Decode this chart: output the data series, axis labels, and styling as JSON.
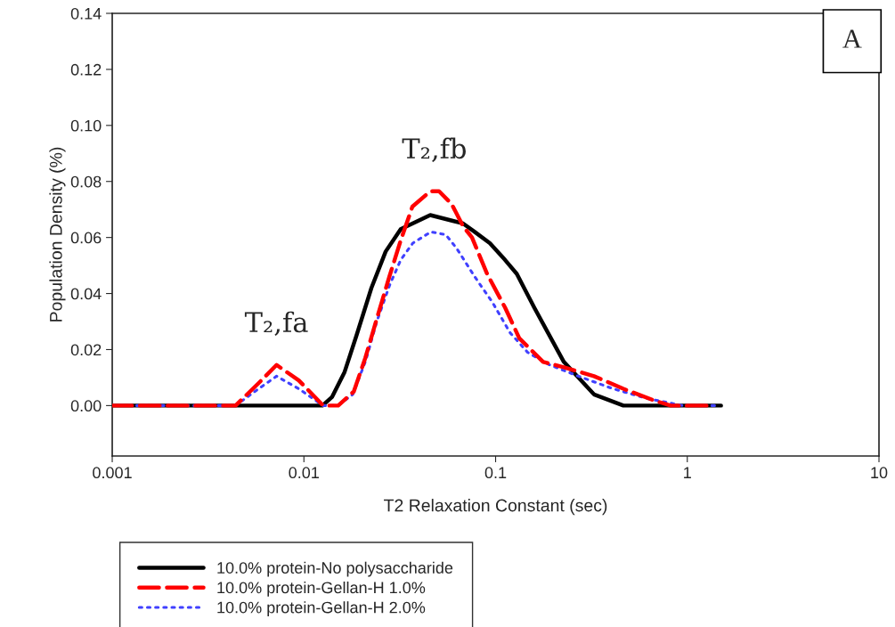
{
  "chart_data": {
    "type": "line",
    "xlabel": "T2 Relaxation Constant (sec)",
    "ylabel": "Population Density (%)",
    "log": "x",
    "xlim": [
      0.001,
      10
    ],
    "xticks": [
      0.001,
      0.01,
      0.1,
      1,
      10
    ],
    "ylim": [
      -0.018,
      0.14
    ],
    "yticks": [
      {
        "value": 0,
        "label": "0.00"
      },
      {
        "value": 0.02,
        "label": "0.02"
      },
      {
        "value": 0.04,
        "label": "0.04"
      },
      {
        "value": 0.06,
        "label": "0.06"
      },
      {
        "value": 0.08,
        "label": "0.08"
      },
      {
        "value": 0.1,
        "label": "0.10"
      },
      {
        "value": 0.12,
        "label": "0.12"
      },
      {
        "value": 0.14,
        "label": "0.14"
      }
    ],
    "grid": false,
    "legend": "bottom",
    "series": [
      {
        "name": "10.0% protein-No polysaccharide",
        "color": "#000000",
        "line_style": "solid",
        "x": [
          0.001,
          0.0125,
          0.014,
          0.0163,
          0.0188,
          0.0225,
          0.0267,
          0.032,
          0.0456,
          0.0677,
          0.0778,
          0.0933,
          0.112,
          0.129,
          0.159,
          0.227,
          0.326,
          0.464,
          1.5
        ],
        "values": [
          0,
          0,
          0.003,
          0.012,
          0.025,
          0.042,
          0.055,
          0.063,
          0.068,
          0.065,
          0.062,
          0.058,
          0.052,
          0.047,
          0.035,
          0.0156,
          0.004,
          0,
          0
        ]
      },
      {
        "name": "10.0% protein-Gellan-H 1.0%",
        "color": "#ff0000",
        "line_style": "dashed",
        "x": [
          0.001,
          0.0044,
          0.0058,
          0.0072,
          0.0094,
          0.0126,
          0.0151,
          0.0182,
          0.0209,
          0.024,
          0.0279,
          0.032,
          0.0368,
          0.0456,
          0.0507,
          0.0589,
          0.0677,
          0.0753,
          0.0903,
          0.112,
          0.133,
          0.177,
          0.227,
          0.326,
          0.464,
          0.661,
          0.818,
          1.3
        ],
        "values": [
          0,
          0,
          0.008,
          0.0145,
          0.009,
          0,
          0,
          0.005,
          0.017,
          0.031,
          0.046,
          0.059,
          0.071,
          0.0765,
          0.0765,
          0.072,
          0.064,
          0.06,
          0.047,
          0.035,
          0.024,
          0.0156,
          0.0137,
          0.0105,
          0.006,
          0.002,
          0,
          0
        ]
      },
      {
        "name": "10.0% protein-Gellan-H 2.0%",
        "color": "#4040ff",
        "line_style": "dotted",
        "x": [
          0.001,
          0.0044,
          0.0058,
          0.0072,
          0.0094,
          0.0126,
          0.015,
          0.018,
          0.021,
          0.024,
          0.028,
          0.032,
          0.037,
          0.046,
          0.055,
          0.0628,
          0.0778,
          0.096,
          0.119,
          0.147,
          0.19,
          0.27,
          0.41,
          0.62,
          0.95,
          1.4
        ],
        "values": [
          0,
          0,
          0.006,
          0.0105,
          0.006,
          0,
          0,
          0.004,
          0.016,
          0.03,
          0.043,
          0.052,
          0.058,
          0.062,
          0.061,
          0.056,
          0.046,
          0.037,
          0.026,
          0.019,
          0.0146,
          0.0105,
          0.006,
          0.0025,
          0,
          0
        ]
      }
    ],
    "annotations": [
      {
        "text": "T₂,fa",
        "x": 0.0072,
        "y": 0.0145
      },
      {
        "text": "T₂,fb",
        "x": 0.048,
        "y": 0.0765
      },
      "A"
    ]
  }
}
